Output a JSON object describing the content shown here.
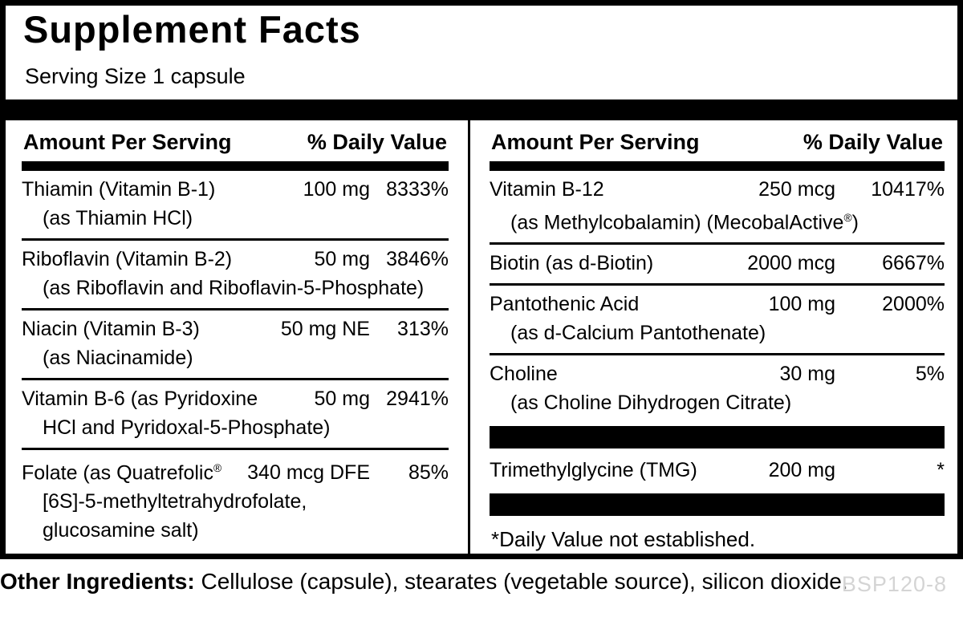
{
  "title": "Supplement Facts",
  "serving_size": "Serving Size 1 capsule",
  "columns": [
    {
      "header": {
        "amount": "Amount Per Serving",
        "dv": "% Daily Value"
      },
      "items": [
        {
          "type": "row",
          "name": [
            {
              "t": "Thiamin (Vitamin B-1)"
            }
          ],
          "amount": "100 mg",
          "pct": "8333%",
          "subs": [
            [
              {
                "t": "(as Thiamin HCl)"
              }
            ]
          ]
        },
        {
          "type": "row",
          "name": [
            {
              "t": "Riboflavin (Vitamin B-2)"
            }
          ],
          "amount": "50 mg",
          "pct": "3846%",
          "subs": [
            [
              {
                "t": "(as Riboflavin and Riboflavin-5-Phosphate)"
              }
            ]
          ]
        },
        {
          "type": "row",
          "name": [
            {
              "t": "Niacin (Vitamin B-3)"
            }
          ],
          "amount": "50 mg NE",
          "pct": "313%",
          "subs": [
            [
              {
                "t": "(as Niacinamide)"
              }
            ]
          ]
        },
        {
          "type": "row",
          "name": [
            {
              "t": "Vitamin B-6 (as Pyridoxine"
            }
          ],
          "amount": "50 mg",
          "pct": "2941%",
          "subs": [
            [
              {
                "t": "HCl and Pyridoxal-5-Phosphate)"
              }
            ]
          ]
        },
        {
          "type": "row",
          "no_border": true,
          "name": [
            {
              "t": "Folate (as Quatrefolic"
            },
            {
              "t": "®",
              "sup": true
            }
          ],
          "amount": "340 mcg DFE",
          "pct": "85%",
          "subs": [
            [
              {
                "t": "[6S]-5-methyltetrahydrofolate,"
              }
            ],
            [
              {
                "t": "glucosamine salt)"
              }
            ]
          ]
        }
      ]
    },
    {
      "header": {
        "amount": "Amount Per Serving",
        "dv": "% Daily Value"
      },
      "items": [
        {
          "type": "row",
          "name": [
            {
              "t": "Vitamin B-12"
            }
          ],
          "amount": "250 mcg",
          "pct": "10417%",
          "subs": [
            [
              {
                "t": "(as Methylcobalamin) (MecobalActive"
              },
              {
                "t": "®",
                "sup": true
              },
              {
                "t": ")"
              }
            ]
          ]
        },
        {
          "type": "row",
          "name": [
            {
              "t": "Biotin (as d-Biotin)"
            }
          ],
          "amount": "2000 mcg",
          "pct": "6667%"
        },
        {
          "type": "row",
          "name": [
            {
              "t": "Pantothenic Acid"
            }
          ],
          "amount": "100 mg",
          "pct": "2000%",
          "subs": [
            [
              {
                "t": "(as d-Calcium Pantothenate)"
              }
            ]
          ]
        },
        {
          "type": "row",
          "no_border": true,
          "name": [
            {
              "t": "Choline"
            }
          ],
          "amount": "30 mg",
          "pct": "5%",
          "subs": [
            [
              {
                "t": "(as Choline Dihydrogen Citrate)"
              }
            ]
          ]
        },
        {
          "type": "bar"
        },
        {
          "type": "row",
          "no_border": true,
          "name": [
            {
              "t": "Trimethylglycine (TMG)"
            }
          ],
          "amount": "200 mg",
          "pct": "*"
        },
        {
          "type": "bar"
        },
        {
          "type": "footnote",
          "text": "*Daily Value not established."
        }
      ]
    }
  ],
  "footer": {
    "other_ingredients_label": "Other Ingredients:",
    "other_ingredients_text": " Cellulose (capsule), stearates (vegetable source), silicon dioxide.",
    "product_code": "BSP120-8"
  },
  "colors": {
    "text": "#000000",
    "separator_bars": "#000000",
    "product_code_gray": "#d4d4d4"
  }
}
